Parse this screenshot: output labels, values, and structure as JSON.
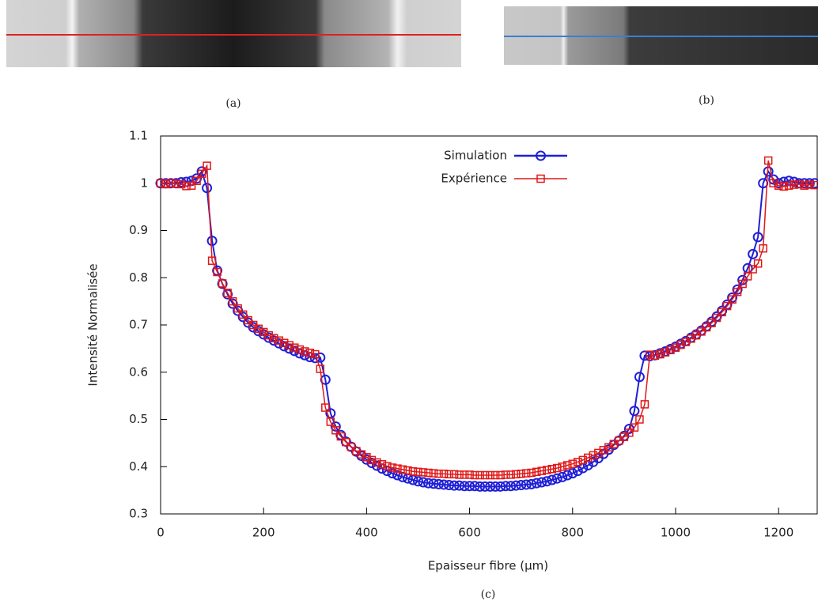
{
  "captions": {
    "a": "(a)",
    "b": "(b)",
    "c": "(c)"
  },
  "chart_data": {
    "type": "line",
    "xlabel": "Epaisseur fibre (µm)",
    "ylabel": "Intensité Normalisée",
    "xlim": [
      0,
      1275
    ],
    "ylim": [
      0.3,
      1.1
    ],
    "xticks": [
      0,
      200,
      400,
      600,
      800,
      1000,
      1200
    ],
    "yticks": [
      0.3,
      0.4,
      0.5,
      0.6,
      0.7,
      0.8,
      0.9,
      1,
      1.1
    ],
    "grid": false,
    "legend": "top center",
    "x": [
      0,
      10,
      20,
      30,
      40,
      50,
      60,
      70,
      80,
      90,
      100,
      110,
      120,
      130,
      140,
      150,
      160,
      170,
      180,
      190,
      200,
      210,
      220,
      230,
      240,
      250,
      260,
      270,
      280,
      290,
      300,
      310,
      320,
      330,
      340,
      350,
      360,
      370,
      380,
      390,
      400,
      410,
      420,
      430,
      440,
      450,
      460,
      470,
      480,
      490,
      500,
      510,
      520,
      530,
      540,
      550,
      560,
      570,
      580,
      590,
      600,
      610,
      620,
      630,
      640,
      650,
      660,
      670,
      680,
      690,
      700,
      710,
      720,
      730,
      740,
      750,
      760,
      770,
      780,
      790,
      800,
      810,
      820,
      830,
      840,
      850,
      860,
      870,
      880,
      890,
      900,
      910,
      920,
      930,
      940,
      950,
      960,
      970,
      980,
      990,
      1000,
      1010,
      1020,
      1030,
      1040,
      1050,
      1060,
      1070,
      1080,
      1090,
      1100,
      1110,
      1120,
      1130,
      1140,
      1150,
      1160,
      1170,
      1180,
      1190,
      1200,
      1210,
      1220,
      1230,
      1240,
      1250,
      1260,
      1270
    ],
    "series": [
      {
        "name": "Simulation",
        "color": "#1f1fd6",
        "marker": "circle",
        "values": [
          1,
          1,
          1,
          1,
          1.002,
          1.003,
          1.005,
          1.01,
          1.025,
          0.99,
          0.878,
          0.815,
          0.787,
          0.765,
          0.745,
          0.73,
          0.717,
          0.705,
          0.695,
          0.687,
          0.68,
          0.673,
          0.667,
          0.661,
          0.655,
          0.65,
          0.645,
          0.64,
          0.636,
          0.632,
          0.63,
          0.631,
          0.584,
          0.513,
          0.485,
          0.467,
          0.453,
          0.442,
          0.432,
          0.423,
          0.415,
          0.408,
          0.402,
          0.396,
          0.391,
          0.386,
          0.382,
          0.378,
          0.375,
          0.372,
          0.369,
          0.367,
          0.365,
          0.364,
          0.363,
          0.362,
          0.361,
          0.36,
          0.36,
          0.359,
          0.359,
          0.359,
          0.358,
          0.358,
          0.358,
          0.358,
          0.358,
          0.359,
          0.359,
          0.36,
          0.361,
          0.362,
          0.363,
          0.365,
          0.367,
          0.369,
          0.372,
          0.375,
          0.378,
          0.382,
          0.386,
          0.391,
          0.397,
          0.403,
          0.41,
          0.418,
          0.427,
          0.436,
          0.446,
          0.455,
          0.465,
          0.48,
          0.518,
          0.59,
          0.635,
          0.634,
          0.636,
          0.64,
          0.644,
          0.649,
          0.654,
          0.66,
          0.666,
          0.673,
          0.68,
          0.688,
          0.697,
          0.707,
          0.718,
          0.73,
          0.743,
          0.758,
          0.775,
          0.795,
          0.82,
          0.85,
          0.886,
          1.0,
          1.025,
          1.008,
          1.0,
          1.003,
          1.005,
          1.003,
          1.0,
          1.0,
          1.0,
          1.0
        ]
      },
      {
        "name": "Expérience",
        "color": "#e01818",
        "marker": "square",
        "values": [
          1.0,
          0.998,
          1.0,
          0.999,
          0.998,
          0.994,
          0.995,
          1.005,
          1.02,
          1.037,
          0.836,
          0.812,
          0.788,
          0.768,
          0.75,
          0.735,
          0.722,
          0.71,
          0.7,
          0.692,
          0.685,
          0.678,
          0.672,
          0.667,
          0.662,
          0.657,
          0.652,
          0.648,
          0.644,
          0.641,
          0.638,
          0.607,
          0.525,
          0.495,
          0.477,
          0.464,
          0.452,
          0.442,
          0.433,
          0.426,
          0.42,
          0.414,
          0.409,
          0.405,
          0.401,
          0.398,
          0.396,
          0.394,
          0.392,
          0.39,
          0.389,
          0.388,
          0.387,
          0.386,
          0.385,
          0.385,
          0.384,
          0.384,
          0.383,
          0.383,
          0.383,
          0.382,
          0.382,
          0.382,
          0.382,
          0.382,
          0.382,
          0.383,
          0.383,
          0.384,
          0.385,
          0.386,
          0.387,
          0.389,
          0.391,
          0.393,
          0.395,
          0.397,
          0.4,
          0.403,
          0.406,
          0.41,
          0.414,
          0.419,
          0.424,
          0.429,
          0.435,
          0.441,
          0.448,
          0.455,
          0.463,
          0.472,
          0.483,
          0.5,
          0.532,
          0.637,
          0.635,
          0.638,
          0.642,
          0.647,
          0.652,
          0.658,
          0.664,
          0.671,
          0.678,
          0.686,
          0.695,
          0.704,
          0.715,
          0.727,
          0.74,
          0.754,
          0.77,
          0.787,
          0.803,
          0.818,
          0.83,
          0.862,
          1.048,
          1.0,
          0.995,
          0.993,
          0.995,
          0.997,
          0.998,
          0.995,
          0.997,
          0.996
        ]
      }
    ]
  }
}
